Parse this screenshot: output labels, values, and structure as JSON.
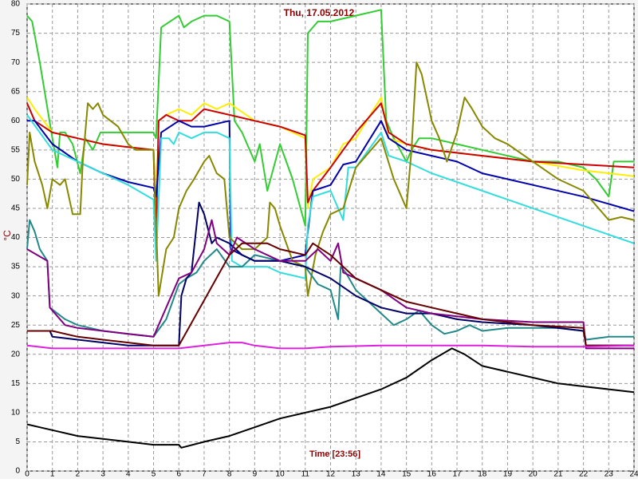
{
  "chart_data": {
    "type": "line",
    "title": "Thu, 17.05.2012",
    "x_label": "Time [23:56]",
    "y_label": "°C",
    "xlim": [
      0,
      24
    ],
    "ylim": [
      0,
      80
    ],
    "xticks": [
      0,
      1,
      2,
      3,
      4,
      5,
      6,
      7,
      8,
      9,
      10,
      11,
      12,
      13,
      14,
      15,
      16,
      17,
      18,
      19,
      20,
      21,
      22,
      23,
      24
    ],
    "yticks": [
      0,
      5,
      10,
      15,
      20,
      25,
      30,
      35,
      40,
      45,
      50,
      55,
      60,
      65,
      70,
      75,
      80
    ],
    "grid": true,
    "series": [
      {
        "color": "#33cc33",
        "x": [
          0,
          0.2,
          0.5,
          1,
          1.2,
          1.3,
          1.5,
          1.8,
          2.1,
          2.3,
          2.6,
          2.9,
          3.5,
          4,
          5,
          5.1,
          5.3,
          6,
          6.2,
          6.5,
          7,
          7.5,
          8,
          8.2,
          8.5,
          9,
          9.2,
          9.5,
          10,
          10.5,
          11,
          11.1,
          11.5,
          12,
          13,
          14,
          14.2,
          14.5,
          15,
          15.2,
          15.5,
          16,
          17,
          18,
          19,
          20,
          21,
          22,
          22.5,
          23,
          23.2,
          24
        ],
        "values": [
          78,
          77,
          70,
          57,
          52,
          58,
          58,
          56,
          51,
          57,
          55,
          58,
          58,
          58,
          58,
          57,
          76,
          78,
          76,
          77,
          78,
          78,
          77,
          60,
          58,
          53,
          56,
          48,
          56,
          50,
          42,
          75,
          77,
          77,
          78,
          79,
          60,
          57,
          53,
          55,
          57,
          57,
          56,
          55,
          54,
          53,
          53,
          52,
          50,
          47,
          53,
          53
        ]
      },
      {
        "color": "#ffee00",
        "x": [
          0,
          0.3,
          1,
          2,
          3,
          4,
          5,
          5.1,
          5.2,
          5.5,
          6,
          6.5,
          7,
          7.5,
          8,
          9,
          10,
          11,
          11.1,
          11.3,
          12,
          12.5,
          13,
          14,
          14.3,
          15,
          16,
          18,
          20,
          22,
          24
        ],
        "values": [
          64,
          62,
          58,
          57,
          56,
          55.5,
          55,
          45,
          60,
          61,
          62,
          61,
          63,
          62,
          63,
          60,
          59,
          57,
          45,
          50,
          52,
          56,
          57,
          64,
          57,
          56,
          55,
          54,
          53,
          51.5,
          50.5
        ]
      },
      {
        "color": "#cc0000",
        "x": [
          0,
          0.3,
          1,
          2,
          3,
          4,
          5,
          5.1,
          5.2,
          5.5,
          6,
          6.5,
          7,
          8,
          9,
          10,
          11,
          11.1,
          11.3,
          12,
          12.5,
          13,
          14,
          14.3,
          15,
          16,
          18,
          20,
          22,
          24
        ],
        "values": [
          63,
          60,
          58,
          57,
          56,
          55.5,
          55,
          40,
          60,
          61,
          60,
          60,
          62,
          61,
          60,
          59,
          57.5,
          46,
          48,
          52,
          55,
          58,
          63,
          58,
          56,
          55,
          54,
          53,
          52.5,
          52
        ]
      },
      {
        "color": "#0000aa",
        "x": [
          0,
          0.3,
          1,
          2,
          3,
          4,
          5,
          5.1,
          5.3,
          6,
          6.5,
          7,
          8,
          8.05,
          8.5,
          9,
          10,
          11,
          11.1,
          11.3,
          12,
          12.5,
          13,
          14,
          14.3,
          15,
          16,
          16.5,
          17,
          18,
          20,
          22,
          24
        ],
        "values": [
          60,
          60,
          56,
          53,
          51,
          49.5,
          48.5,
          47,
          58,
          60,
          59,
          59,
          60,
          38,
          37,
          36,
          36,
          37,
          41,
          48,
          49,
          52.5,
          53,
          60,
          57,
          55,
          54,
          53.5,
          53,
          51,
          49,
          47,
          44.5
        ]
      },
      {
        "color": "#33dddd",
        "x": [
          0,
          0.5,
          1,
          2,
          3,
          4,
          5,
          5.1,
          5.3,
          5.6,
          5.8,
          6,
          6.5,
          7,
          7.5,
          8,
          8.1,
          8.5,
          9,
          9.5,
          10,
          11,
          11.1,
          11.3,
          12,
          12.5,
          12.7,
          13,
          14,
          14.3,
          15,
          16,
          18,
          20,
          22,
          24
        ],
        "values": [
          61,
          58,
          55,
          53,
          51,
          49,
          46.5,
          36,
          57,
          57,
          56,
          58,
          57,
          58,
          58,
          57,
          36,
          35,
          35,
          35,
          34,
          33,
          42,
          47,
          48,
          43,
          52,
          52,
          58,
          54,
          53,
          51,
          48,
          45,
          42,
          39
        ]
      },
      {
        "color": "#888800",
        "x": [
          0,
          0.1,
          0.3,
          0.6,
          0.8,
          1,
          1.3,
          1.5,
          1.8,
          2.1,
          2.2,
          2.4,
          2.6,
          2.8,
          3,
          3.3,
          3.6,
          4,
          4.3,
          5,
          5.2,
          5.5,
          5.8,
          6,
          6.3,
          6.6,
          7,
          7.2,
          7.5,
          7.8,
          8,
          8.5,
          9,
          9.5,
          9.6,
          9.8,
          10,
          10.5,
          11,
          11.1,
          11.4,
          11.7,
          12,
          12.5,
          13,
          14,
          14.5,
          15,
          15.2,
          15.4,
          15.6,
          16,
          16.3,
          16.6,
          17,
          17.3,
          17.6,
          18,
          18.5,
          19,
          20,
          21,
          22,
          23,
          23.5,
          24
        ],
        "values": [
          49,
          58,
          53,
          49,
          45,
          50,
          49,
          50,
          44,
          44,
          53,
          63,
          62,
          63,
          61,
          60,
          59,
          56,
          55,
          55,
          30,
          38,
          40,
          45,
          48,
          50,
          53,
          54,
          51,
          50,
          40,
          38,
          38,
          40,
          46,
          45,
          42,
          36,
          35,
          30,
          37,
          41,
          44,
          45,
          52,
          57,
          50,
          45,
          55,
          70,
          68,
          60,
          57,
          53,
          58,
          64,
          62,
          59,
          57,
          56,
          53,
          50,
          48,
          43,
          43.5,
          43
        ]
      },
      {
        "color": "#228888",
        "x": [
          0,
          0.1,
          0.3,
          0.5,
          0.8,
          0.9,
          1.5,
          2,
          3,
          4,
          5,
          5.5,
          6,
          6.3,
          6.7,
          7,
          7.5,
          8,
          8.5,
          9,
          10,
          11,
          11.5,
          12,
          12.3,
          12.4,
          12.6,
          13,
          13.5,
          14,
          14.5,
          15,
          15.5,
          16,
          16.5,
          17,
          17.5,
          18,
          19,
          20,
          21,
          22,
          22.1,
          23,
          24
        ],
        "values": [
          38,
          43,
          41,
          38,
          36,
          28,
          26,
          25,
          24,
          23.5,
          23,
          26,
          32,
          33,
          34,
          36,
          38,
          35,
          35,
          37,
          36,
          35,
          32,
          31,
          26,
          35,
          34,
          31,
          29,
          27,
          25,
          26,
          27.5,
          25,
          23.5,
          24,
          25,
          24,
          24.5,
          24.5,
          24.5,
          24,
          22.5,
          23,
          23
        ]
      },
      {
        "color": "#000066",
        "x": [
          0,
          0.9,
          1,
          2,
          3,
          4,
          5,
          6,
          6.1,
          6.3,
          6.5,
          6.8,
          7,
          7.3,
          7.5,
          8,
          8.5,
          9,
          10,
          11,
          12,
          13,
          14,
          15,
          16,
          17,
          18,
          20,
          22,
          22.1,
          24
        ],
        "values": [
          24,
          24,
          23,
          22.5,
          22,
          21.5,
          21.5,
          21.5,
          30,
          33,
          34,
          46,
          44,
          39,
          40,
          39,
          37,
          36,
          36,
          35,
          33,
          30,
          28,
          27,
          27,
          26,
          25.5,
          25,
          24,
          21.5,
          21.5
        ]
      },
      {
        "color": "#800080",
        "x": [
          0,
          0.8,
          0.9,
          1.5,
          2,
          3,
          4,
          5,
          6,
          6.5,
          7,
          7.3,
          7.5,
          8,
          8.3,
          9,
          10,
          11,
          11.5,
          12,
          12.3,
          12.5,
          13,
          14,
          15,
          16,
          17,
          18,
          20,
          22,
          22.1,
          24
        ],
        "values": [
          38,
          36,
          28,
          25,
          24.5,
          24,
          23.5,
          23,
          33,
          34,
          38,
          43,
          39,
          37,
          40,
          38,
          36,
          36,
          38,
          36,
          39,
          34,
          33,
          31,
          28,
          27,
          26.5,
          26,
          25.5,
          25.5,
          21,
          21
        ]
      },
      {
        "color": "#660000",
        "x": [
          0,
          1,
          2,
          3,
          4,
          5,
          6,
          8,
          8.5,
          9,
          9.5,
          10,
          11,
          11.3,
          12,
          13,
          14,
          15,
          16,
          17,
          18,
          20,
          22,
          22.1,
          24
        ],
        "values": [
          24,
          24,
          23,
          22.5,
          22,
          21.5,
          21.5,
          37,
          39,
          39,
          39,
          38,
          37,
          39,
          37,
          33,
          31,
          29,
          28,
          27,
          26,
          25,
          24.5,
          21.5,
          21.5
        ]
      },
      {
        "color": "#dd22dd",
        "x": [
          0,
          1,
          3,
          5,
          6,
          7,
          8,
          8.5,
          9,
          10,
          11,
          12,
          14,
          16,
          18,
          20,
          22,
          24
        ],
        "values": [
          21.5,
          21,
          21,
          21,
          21,
          21.5,
          22,
          22,
          21.5,
          21,
          21,
          21.3,
          21.5,
          21.5,
          21.5,
          21.3,
          21.3,
          21.5
        ]
      },
      {
        "color": "#000000",
        "x": [
          0,
          0.5,
          1,
          2,
          3,
          4,
          5,
          6,
          6.1,
          7,
          8,
          9,
          10,
          11,
          12,
          13,
          14,
          15,
          16,
          16.8,
          17.3,
          18,
          19,
          20,
          21,
          22,
          23,
          24
        ],
        "values": [
          8,
          7.5,
          7,
          6,
          5.5,
          5,
          4.5,
          4.5,
          4,
          5,
          6,
          7.5,
          9,
          10,
          11,
          12.5,
          14,
          16,
          19,
          21,
          20,
          18,
          17,
          16,
          15,
          14.5,
          14,
          13.5
        ]
      }
    ]
  }
}
